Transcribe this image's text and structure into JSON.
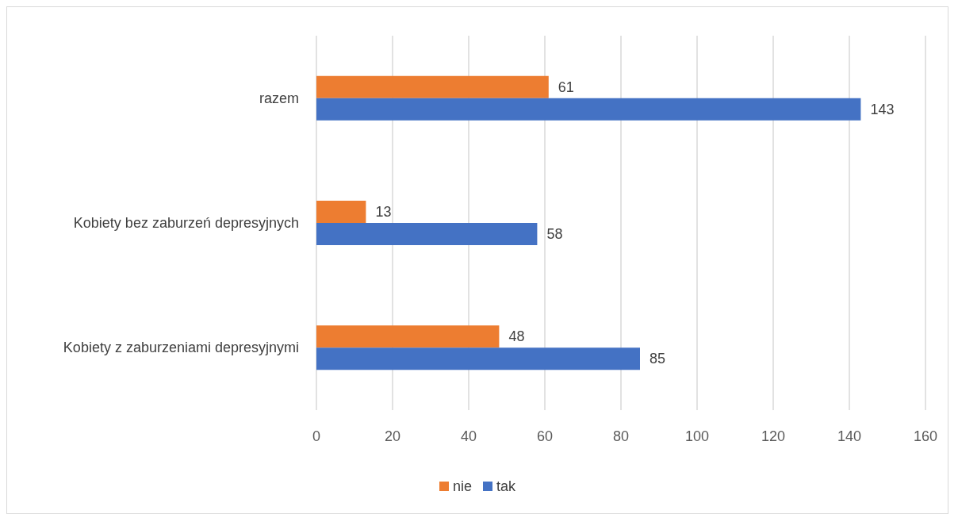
{
  "chart_data": {
    "type": "bar",
    "orientation": "horizontal",
    "categories": [
      "razem",
      "Kobiety bez zaburzeń depresyjnych",
      "Kobiety z zaburzeniami depresyjnymi"
    ],
    "series": [
      {
        "name": "nie",
        "color": "#ed7d31",
        "values": [
          61,
          13,
          48
        ]
      },
      {
        "name": "tak",
        "color": "#4472c4",
        "values": [
          143,
          58,
          85
        ]
      }
    ],
    "xlim": [
      0,
      160
    ],
    "xticks": [
      0,
      20,
      40,
      60,
      80,
      100,
      120,
      140,
      160
    ],
    "grid": "x",
    "legend": "bottom",
    "data_labels": true
  }
}
